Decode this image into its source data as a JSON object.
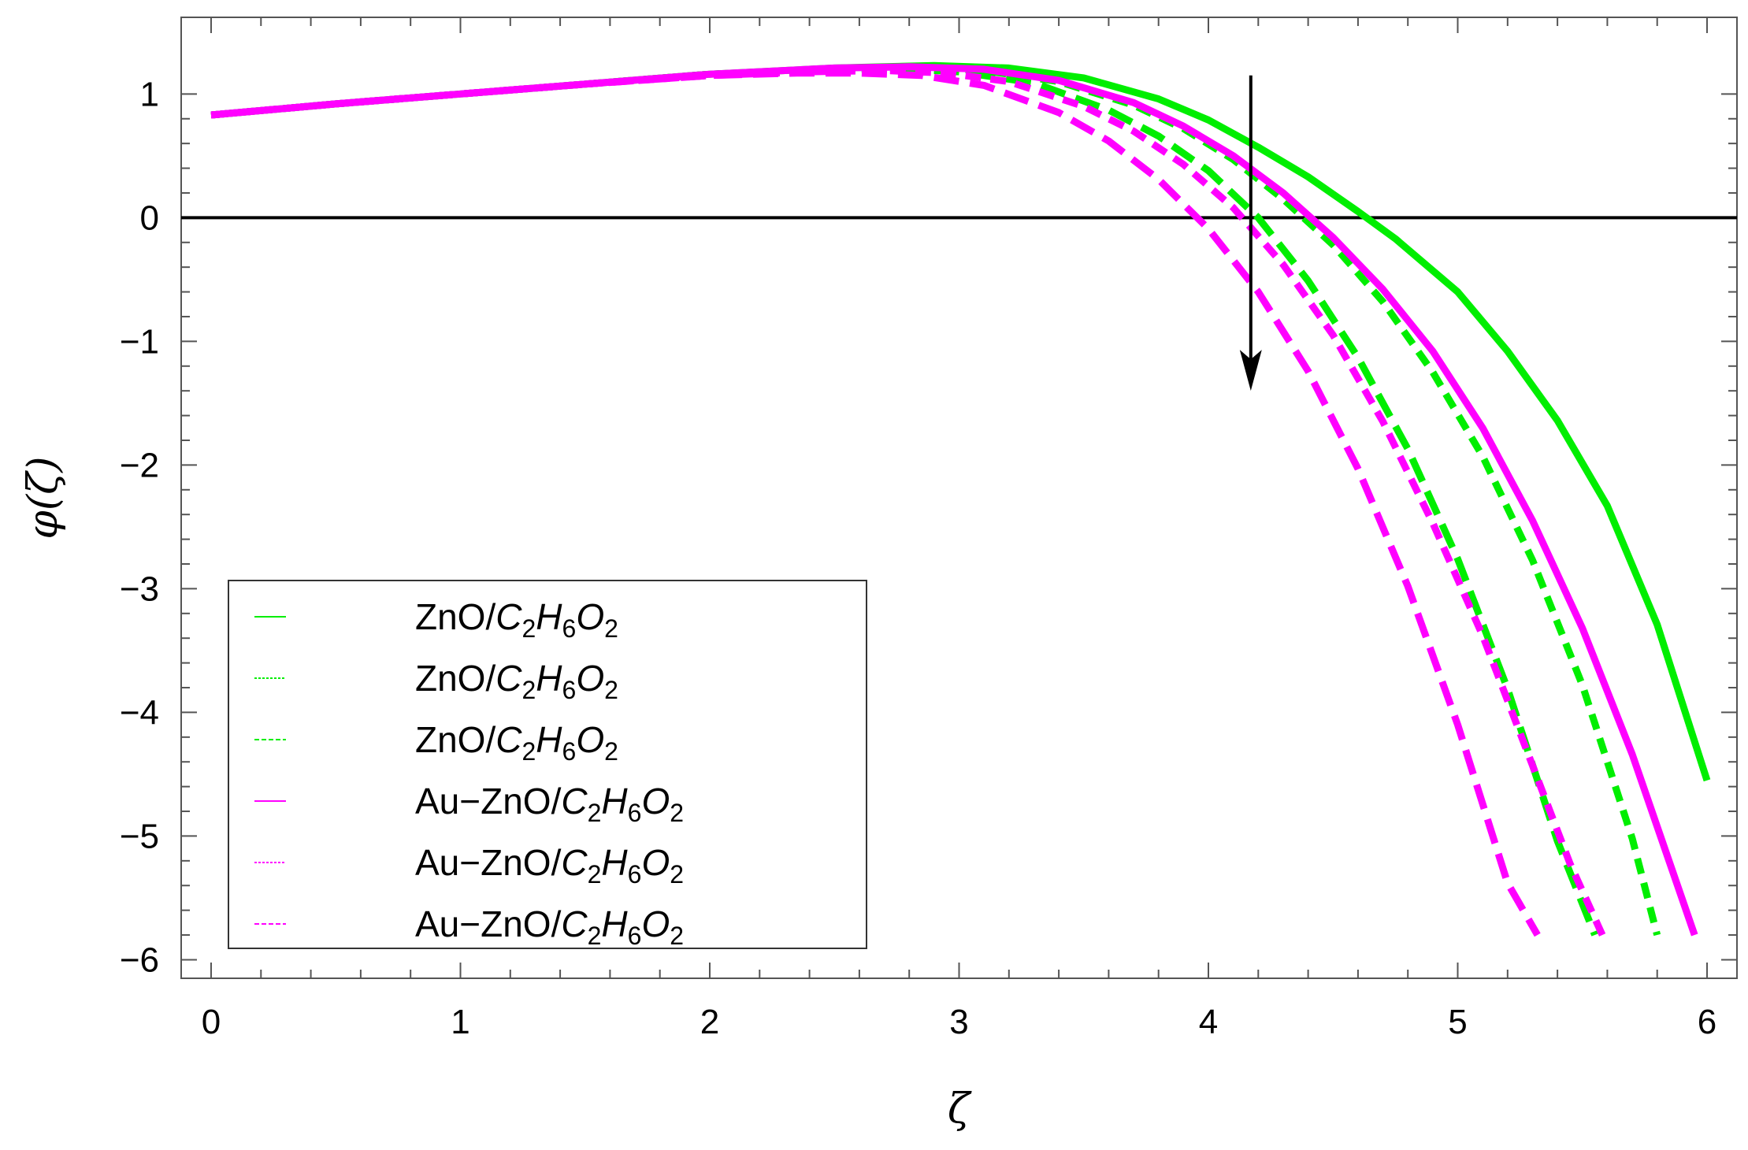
{
  "chart_data": {
    "type": "line",
    "title": "",
    "xlabel": "ζ",
    "ylabel": "φ(ζ)",
    "xlim": [
      -0.12,
      6.12
    ],
    "ylim": [
      -6.15,
      1.62
    ],
    "x_ticks": [
      {
        "value": 0,
        "label": "0"
      },
      {
        "value": 1,
        "label": "1"
      },
      {
        "value": 2,
        "label": "2"
      },
      {
        "value": 3,
        "label": "3"
      },
      {
        "value": 4,
        "label": "4"
      },
      {
        "value": 5,
        "label": "5"
      },
      {
        "value": 6,
        "label": "6"
      }
    ],
    "y_ticks": [
      {
        "value": 1,
        "label": "1"
      },
      {
        "value": 0,
        "label": "0"
      },
      {
        "value": -1,
        "label": "−1"
      },
      {
        "value": -2,
        "label": "−2"
      },
      {
        "value": -3,
        "label": "−3"
      },
      {
        "value": -4,
        "label": "−4"
      },
      {
        "value": -5,
        "label": "−5"
      },
      {
        "value": -6,
        "label": "−6"
      }
    ],
    "grid": false,
    "zero_line": true,
    "legend": {
      "position": "bottom-left",
      "entries": [
        {
          "prefix": "ZnO/",
          "formula": "C2H6O2"
        },
        {
          "prefix": "ZnO/",
          "formula": "C2H6O2"
        },
        {
          "prefix": "ZnO/",
          "formula": "C2H6O2"
        },
        {
          "prefix": "Au−ZnO/",
          "formula": "C2H6O2"
        },
        {
          "prefix": "Au−ZnO/",
          "formula": "C2H6O2"
        },
        {
          "prefix": "Au−ZnO/",
          "formula": "C2H6O2"
        }
      ]
    },
    "arrow": {
      "x": 4.17,
      "y_start": 1.15,
      "y_end": -1.4,
      "direction": "down"
    },
    "series": [
      {
        "color": "#00ee00",
        "dash": "solid",
        "x": [
          0,
          0.5,
          1,
          1.5,
          2,
          2.5,
          2.9,
          3.2,
          3.5,
          3.8,
          4.0,
          4.2,
          4.4,
          4.6,
          4.75,
          5.0,
          5.2,
          5.4,
          5.6,
          5.8,
          6.0
        ],
        "y": [
          0.83,
          0.92,
          1.0,
          1.08,
          1.16,
          1.21,
          1.23,
          1.21,
          1.13,
          0.96,
          0.79,
          0.57,
          0.33,
          0.05,
          -0.17,
          -0.6,
          -1.08,
          -1.64,
          -2.33,
          -3.29,
          -4.55
        ]
      },
      {
        "color": "#00ee00",
        "dash": "dotted",
        "x": [
          0,
          0.5,
          1,
          1.5,
          2,
          2.5,
          2.85,
          3.1,
          3.4,
          3.7,
          3.9,
          4.1,
          4.3,
          4.5,
          4.7,
          4.9,
          5.1,
          5.3,
          5.5,
          5.7,
          5.8
        ],
        "y": [
          0.83,
          0.92,
          1.0,
          1.08,
          1.16,
          1.2,
          1.21,
          1.19,
          1.1,
          0.91,
          0.72,
          0.47,
          0.15,
          -0.22,
          -0.68,
          -1.25,
          -1.93,
          -2.77,
          -3.78,
          -5.02,
          -5.8
        ]
      },
      {
        "color": "#00ee00",
        "dash": "dashed",
        "x": [
          0,
          0.5,
          1,
          1.5,
          2,
          2.5,
          2.8,
          3.0,
          3.3,
          3.6,
          3.8,
          4.0,
          4.2,
          4.4,
          4.6,
          4.8,
          5.0,
          5.2,
          5.4,
          5.55
        ],
        "y": [
          0.83,
          0.92,
          1.0,
          1.08,
          1.16,
          1.2,
          1.2,
          1.18,
          1.09,
          0.87,
          0.66,
          0.38,
          0.0,
          -0.51,
          -1.13,
          -1.87,
          -2.76,
          -3.81,
          -5.04,
          -5.8
        ]
      },
      {
        "color": "#ff00ff",
        "dash": "solid",
        "x": [
          0,
          0.5,
          1,
          1.5,
          2,
          2.5,
          2.8,
          3.1,
          3.4,
          3.7,
          3.9,
          4.1,
          4.3,
          4.5,
          4.7,
          4.9,
          5.1,
          5.3,
          5.5,
          5.7,
          5.95
        ],
        "y": [
          0.83,
          0.92,
          1.0,
          1.08,
          1.16,
          1.21,
          1.22,
          1.2,
          1.11,
          0.93,
          0.74,
          0.5,
          0.2,
          -0.16,
          -0.58,
          -1.08,
          -1.7,
          -2.45,
          -3.32,
          -4.34,
          -5.8
        ]
      },
      {
        "color": "#ff00ff",
        "dash": "dotted",
        "x": [
          0,
          0.5,
          1,
          1.5,
          2,
          2.4,
          2.7,
          2.95,
          3.2,
          3.5,
          3.7,
          3.9,
          4.1,
          4.3,
          4.5,
          4.7,
          4.9,
          5.1,
          5.3,
          5.45,
          5.58
        ],
        "y": [
          0.83,
          0.92,
          1.0,
          1.08,
          1.15,
          1.18,
          1.19,
          1.17,
          1.1,
          0.9,
          0.7,
          0.43,
          0.08,
          -0.38,
          -0.95,
          -1.65,
          -2.47,
          -3.38,
          -4.43,
          -5.22,
          -5.8
        ]
      },
      {
        "color": "#ff00ff",
        "dash": "dashed",
        "x": [
          0,
          0.5,
          1,
          1.5,
          2,
          2.35,
          2.6,
          2.85,
          3.1,
          3.4,
          3.6,
          3.8,
          4.0,
          4.2,
          4.4,
          4.6,
          4.8,
          5.0,
          5.2,
          5.32
        ],
        "y": [
          0.83,
          0.92,
          1.0,
          1.08,
          1.15,
          1.17,
          1.17,
          1.15,
          1.07,
          0.85,
          0.62,
          0.31,
          -0.09,
          -0.6,
          -1.24,
          -2.03,
          -2.98,
          -4.1,
          -5.38,
          -5.8
        ]
      }
    ]
  }
}
